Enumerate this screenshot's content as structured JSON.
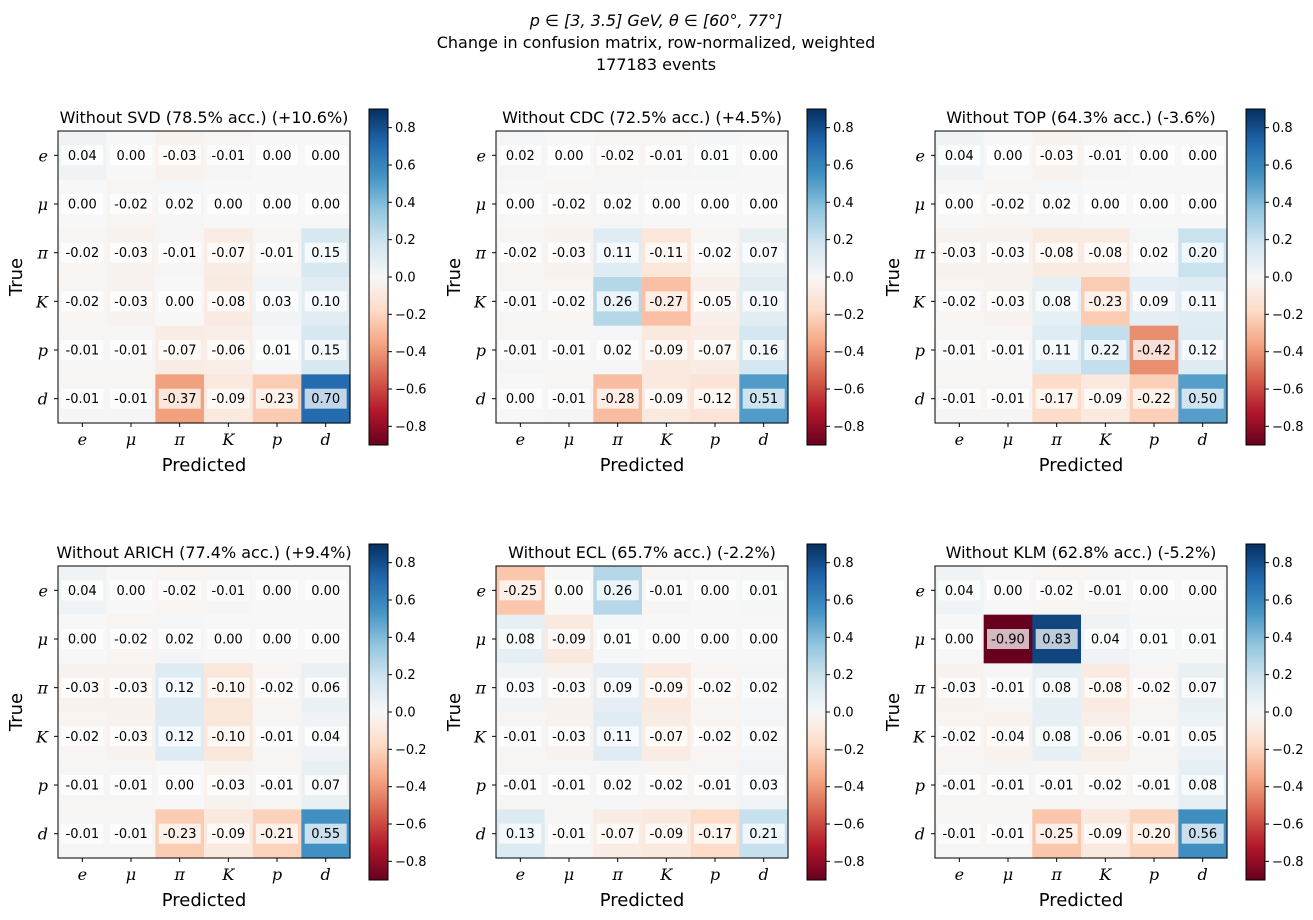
{
  "figure": {
    "title_line1": "p ∈ [3, 3.5] GeV, θ ∈ [60°, 77°]",
    "title_line2": "Change in confusion matrix, row-normalized, weighted",
    "title_line3": "177183 events"
  },
  "chart_data": [
    {
      "type": "heatmap",
      "title": "Without SVD (78.5% acc.) (+10.6%)",
      "xlabel": "Predicted",
      "ylabel": "True",
      "xticks": [
        "e",
        "μ",
        "π",
        "K",
        "p",
        "d"
      ],
      "yticks": [
        "e",
        "μ",
        "π",
        "K",
        "p",
        "d"
      ],
      "colorbar": {
        "range": [
          -0.9,
          0.9
        ],
        "ticks": [
          "-0.8",
          "-0.6",
          "-0.4",
          "-0.2",
          "0.0",
          "0.2",
          "0.4",
          "0.6",
          "0.8"
        ],
        "colormap": "RdBu"
      },
      "values": [
        [
          0.04,
          0.0,
          -0.03,
          -0.01,
          0.0,
          0.0
        ],
        [
          0.0,
          -0.02,
          0.02,
          0.0,
          0.0,
          0.0
        ],
        [
          -0.02,
          -0.03,
          -0.01,
          -0.07,
          -0.01,
          0.15
        ],
        [
          -0.02,
          -0.03,
          0.0,
          -0.08,
          0.03,
          0.1
        ],
        [
          -0.01,
          -0.01,
          -0.07,
          -0.06,
          0.01,
          0.15
        ],
        [
          -0.01,
          -0.01,
          -0.37,
          -0.09,
          -0.23,
          0.7
        ]
      ]
    },
    {
      "type": "heatmap",
      "title": "Without CDC (72.5% acc.) (+4.5%)",
      "xlabel": "Predicted",
      "ylabel": "True",
      "xticks": [
        "e",
        "μ",
        "π",
        "K",
        "p",
        "d"
      ],
      "yticks": [
        "e",
        "μ",
        "π",
        "K",
        "p",
        "d"
      ],
      "colorbar": {
        "range": [
          -0.9,
          0.9
        ],
        "ticks": [
          "-0.8",
          "-0.6",
          "-0.4",
          "-0.2",
          "0.0",
          "0.2",
          "0.4",
          "0.6",
          "0.8"
        ],
        "colormap": "RdBu"
      },
      "values": [
        [
          0.02,
          0.0,
          -0.02,
          -0.01,
          0.01,
          0.0
        ],
        [
          0.0,
          -0.02,
          0.02,
          0.0,
          0.0,
          0.0
        ],
        [
          -0.02,
          -0.03,
          0.11,
          -0.11,
          -0.02,
          0.07
        ],
        [
          -0.01,
          -0.02,
          0.26,
          -0.27,
          -0.05,
          0.1
        ],
        [
          -0.01,
          -0.01,
          0.02,
          -0.09,
          -0.07,
          0.16
        ],
        [
          0.0,
          -0.01,
          -0.28,
          -0.09,
          -0.12,
          0.51
        ]
      ]
    },
    {
      "type": "heatmap",
      "title": "Without TOP (64.3% acc.) (-3.6%)",
      "xlabel": "Predicted",
      "ylabel": "True",
      "xticks": [
        "e",
        "μ",
        "π",
        "K",
        "p",
        "d"
      ],
      "yticks": [
        "e",
        "μ",
        "π",
        "K",
        "p",
        "d"
      ],
      "colorbar": {
        "range": [
          -0.9,
          0.9
        ],
        "ticks": [
          "-0.8",
          "-0.6",
          "-0.4",
          "-0.2",
          "0.0",
          "0.2",
          "0.4",
          "0.6",
          "0.8"
        ],
        "colormap": "RdBu"
      },
      "values": [
        [
          0.04,
          0.0,
          -0.03,
          -0.01,
          0.0,
          0.0
        ],
        [
          0.0,
          -0.02,
          0.02,
          0.0,
          0.0,
          0.0
        ],
        [
          -0.03,
          -0.03,
          -0.08,
          -0.08,
          0.02,
          0.2
        ],
        [
          -0.02,
          -0.03,
          0.08,
          -0.23,
          0.09,
          0.11
        ],
        [
          -0.01,
          -0.01,
          0.11,
          0.22,
          -0.42,
          0.12
        ],
        [
          -0.01,
          -0.01,
          -0.17,
          -0.09,
          -0.22,
          0.5
        ]
      ]
    },
    {
      "type": "heatmap",
      "title": "Without ARICH (77.4% acc.) (+9.4%)",
      "xlabel": "Predicted",
      "ylabel": "True",
      "xticks": [
        "e",
        "μ",
        "π",
        "K",
        "p",
        "d"
      ],
      "yticks": [
        "e",
        "μ",
        "π",
        "K",
        "p",
        "d"
      ],
      "colorbar": {
        "range": [
          -0.9,
          0.9
        ],
        "ticks": [
          "-0.8",
          "-0.6",
          "-0.4",
          "-0.2",
          "0.0",
          "0.2",
          "0.4",
          "0.6",
          "0.8"
        ],
        "colormap": "RdBu"
      },
      "values": [
        [
          0.04,
          0.0,
          -0.02,
          -0.01,
          0.0,
          0.0
        ],
        [
          0.0,
          -0.02,
          0.02,
          0.0,
          0.0,
          0.0
        ],
        [
          -0.03,
          -0.03,
          0.12,
          -0.1,
          -0.02,
          0.06
        ],
        [
          -0.02,
          -0.03,
          0.12,
          -0.1,
          -0.01,
          0.04
        ],
        [
          -0.01,
          -0.01,
          0.0,
          -0.03,
          -0.01,
          0.07
        ],
        [
          -0.01,
          -0.01,
          -0.23,
          -0.09,
          -0.21,
          0.55
        ]
      ]
    },
    {
      "type": "heatmap",
      "title": "Without ECL (65.7% acc.) (-2.2%)",
      "xlabel": "Predicted",
      "ylabel": "True",
      "xticks": [
        "e",
        "μ",
        "π",
        "K",
        "p",
        "d"
      ],
      "yticks": [
        "e",
        "μ",
        "π",
        "K",
        "p",
        "d"
      ],
      "colorbar": {
        "range": [
          -0.9,
          0.9
        ],
        "ticks": [
          "-0.8",
          "-0.6",
          "-0.4",
          "-0.2",
          "0.0",
          "0.2",
          "0.4",
          "0.6",
          "0.8"
        ],
        "colormap": "RdBu"
      },
      "values": [
        [
          -0.25,
          0.0,
          0.26,
          -0.01,
          0.0,
          0.01
        ],
        [
          0.08,
          -0.09,
          0.01,
          0.0,
          0.0,
          0.0
        ],
        [
          0.03,
          -0.03,
          0.09,
          -0.09,
          -0.02,
          0.02
        ],
        [
          -0.01,
          -0.03,
          0.11,
          -0.07,
          -0.02,
          0.02
        ],
        [
          -0.01,
          -0.01,
          0.02,
          -0.02,
          -0.01,
          0.03
        ],
        [
          0.13,
          -0.01,
          -0.07,
          -0.09,
          -0.17,
          0.21
        ]
      ]
    },
    {
      "type": "heatmap",
      "title": "Without KLM (62.8% acc.) (-5.2%)",
      "xlabel": "Predicted",
      "ylabel": "True",
      "xticks": [
        "e",
        "μ",
        "π",
        "K",
        "p",
        "d"
      ],
      "yticks": [
        "e",
        "μ",
        "π",
        "K",
        "p",
        "d"
      ],
      "colorbar": {
        "range": [
          -0.9,
          0.9
        ],
        "ticks": [
          "-0.8",
          "-0.6",
          "-0.4",
          "-0.2",
          "0.0",
          "0.2",
          "0.4",
          "0.6",
          "0.8"
        ],
        "colormap": "RdBu"
      },
      "values": [
        [
          0.04,
          0.0,
          -0.02,
          -0.01,
          0.0,
          0.0
        ],
        [
          0.0,
          -0.9,
          0.83,
          0.04,
          0.01,
          0.01
        ],
        [
          -0.03,
          -0.01,
          0.08,
          -0.08,
          -0.02,
          0.07
        ],
        [
          -0.02,
          -0.04,
          0.08,
          -0.06,
          -0.01,
          0.05
        ],
        [
          -0.01,
          -0.01,
          -0.01,
          -0.02,
          -0.01,
          0.08
        ],
        [
          -0.01,
          -0.01,
          -0.25,
          -0.09,
          -0.2,
          0.56
        ]
      ]
    }
  ]
}
